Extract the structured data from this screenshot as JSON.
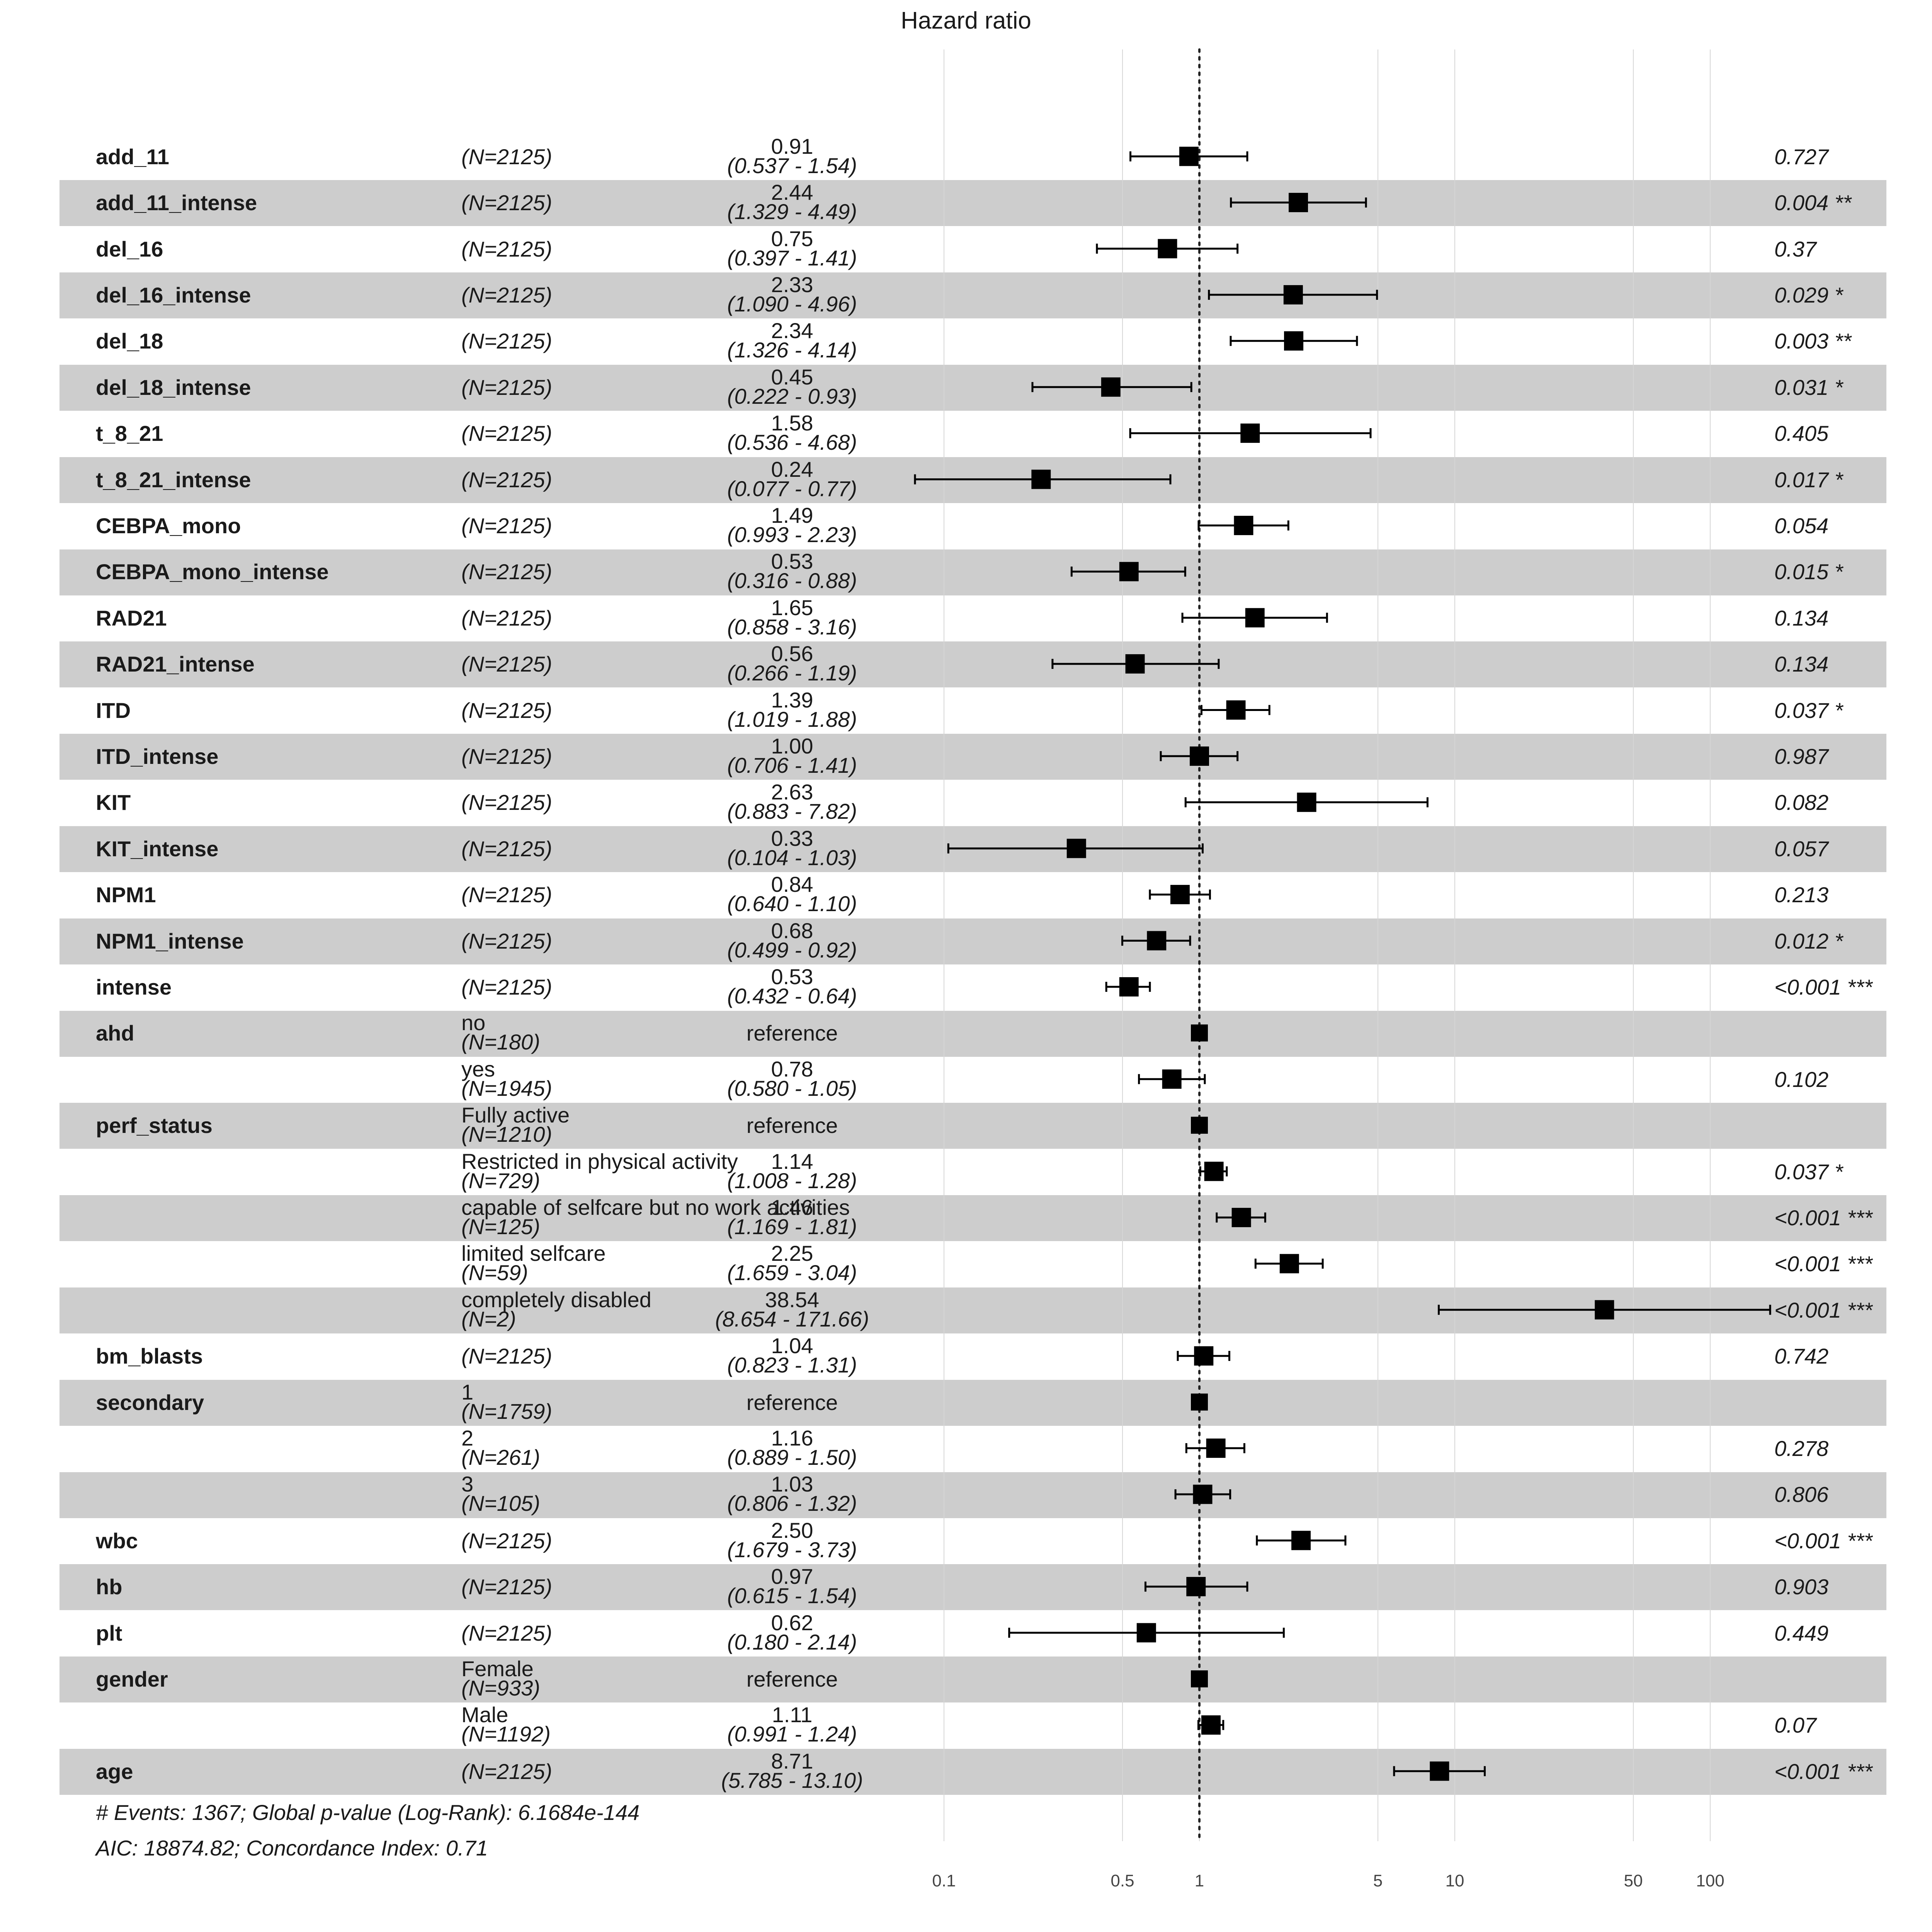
{
  "chart_data": {
    "type": "forest",
    "title": "Hazard ratio",
    "x_scale": "log",
    "x_ticks": [
      "0.1",
      "0.5",
      "1",
      "5",
      "10",
      "50",
      "100"
    ],
    "reference_line": 1,
    "rows": [
      {
        "variable": "add_11",
        "level": "",
        "n": "(N=2125)",
        "hr": 0.91,
        "hr_label": "0.91",
        "ci_label": "(0.537 -   1.54)",
        "lo": 0.537,
        "hi": 1.54,
        "p": "0.727"
      },
      {
        "variable": "add_11_intense",
        "level": "",
        "n": "(N=2125)",
        "hr": 2.44,
        "hr_label": "2.44",
        "ci_label": "(1.329 -   4.49)",
        "lo": 1.329,
        "hi": 4.49,
        "p": "0.004 **"
      },
      {
        "variable": "del_16",
        "level": "",
        "n": "(N=2125)",
        "hr": 0.75,
        "hr_label": "0.75",
        "ci_label": "(0.397 -   1.41)",
        "lo": 0.397,
        "hi": 1.41,
        "p": "0.37"
      },
      {
        "variable": "del_16_intense",
        "level": "",
        "n": "(N=2125)",
        "hr": 2.33,
        "hr_label": "2.33",
        "ci_label": "(1.090 -   4.96)",
        "lo": 1.09,
        "hi": 4.96,
        "p": "0.029 *"
      },
      {
        "variable": "del_18",
        "level": "",
        "n": "(N=2125)",
        "hr": 2.34,
        "hr_label": "2.34",
        "ci_label": "(1.326 -   4.14)",
        "lo": 1.326,
        "hi": 4.14,
        "p": "0.003 **"
      },
      {
        "variable": "del_18_intense",
        "level": "",
        "n": "(N=2125)",
        "hr": 0.45,
        "hr_label": "0.45",
        "ci_label": "(0.222 -   0.93)",
        "lo": 0.222,
        "hi": 0.93,
        "p": "0.031 *"
      },
      {
        "variable": "t_8_21",
        "level": "",
        "n": "(N=2125)",
        "hr": 1.58,
        "hr_label": "1.58",
        "ci_label": "(0.536 -   4.68)",
        "lo": 0.536,
        "hi": 4.68,
        "p": "0.405"
      },
      {
        "variable": "t_8_21_intense",
        "level": "",
        "n": "(N=2125)",
        "hr": 0.24,
        "hr_label": "0.24",
        "ci_label": "(0.077 -   0.77)",
        "lo": 0.077,
        "hi": 0.77,
        "p": "0.017 *"
      },
      {
        "variable": "CEBPA_mono",
        "level": "",
        "n": "(N=2125)",
        "hr": 1.49,
        "hr_label": "1.49",
        "ci_label": "(0.993 -   2.23)",
        "lo": 0.993,
        "hi": 2.23,
        "p": "0.054"
      },
      {
        "variable": "CEBPA_mono_intense",
        "level": "",
        "n": "(N=2125)",
        "hr": 0.53,
        "hr_label": "0.53",
        "ci_label": "(0.316 -   0.88)",
        "lo": 0.316,
        "hi": 0.88,
        "p": "0.015 *"
      },
      {
        "variable": "RAD21",
        "level": "",
        "n": "(N=2125)",
        "hr": 1.65,
        "hr_label": "1.65",
        "ci_label": "(0.858 -   3.16)",
        "lo": 0.858,
        "hi": 3.16,
        "p": "0.134"
      },
      {
        "variable": "RAD21_intense",
        "level": "",
        "n": "(N=2125)",
        "hr": 0.56,
        "hr_label": "0.56",
        "ci_label": "(0.266 -   1.19)",
        "lo": 0.266,
        "hi": 1.19,
        "p": "0.134"
      },
      {
        "variable": "ITD",
        "level": "",
        "n": "(N=2125)",
        "hr": 1.39,
        "hr_label": "1.39",
        "ci_label": "(1.019 -   1.88)",
        "lo": 1.019,
        "hi": 1.88,
        "p": "0.037 *"
      },
      {
        "variable": "ITD_intense",
        "level": "",
        "n": "(N=2125)",
        "hr": 1.0,
        "hr_label": "1.00",
        "ci_label": "(0.706 -   1.41)",
        "lo": 0.706,
        "hi": 1.41,
        "p": "0.987"
      },
      {
        "variable": "KIT",
        "level": "",
        "n": "(N=2125)",
        "hr": 2.63,
        "hr_label": "2.63",
        "ci_label": "(0.883 -   7.82)",
        "lo": 0.883,
        "hi": 7.82,
        "p": "0.082"
      },
      {
        "variable": "KIT_intense",
        "level": "",
        "n": "(N=2125)",
        "hr": 0.33,
        "hr_label": "0.33",
        "ci_label": "(0.104 -   1.03)",
        "lo": 0.104,
        "hi": 1.03,
        "p": "0.057"
      },
      {
        "variable": "NPM1",
        "level": "",
        "n": "(N=2125)",
        "hr": 0.84,
        "hr_label": "0.84",
        "ci_label": "(0.640 -   1.10)",
        "lo": 0.64,
        "hi": 1.1,
        "p": "0.213"
      },
      {
        "variable": "NPM1_intense",
        "level": "",
        "n": "(N=2125)",
        "hr": 0.68,
        "hr_label": "0.68",
        "ci_label": "(0.499 -   0.92)",
        "lo": 0.499,
        "hi": 0.92,
        "p": "0.012 *"
      },
      {
        "variable": "intense",
        "level": "",
        "n": "(N=2125)",
        "hr": 0.53,
        "hr_label": "0.53",
        "ci_label": "(0.432 -   0.64)",
        "lo": 0.432,
        "hi": 0.64,
        "p": "<0.001 ***"
      },
      {
        "variable": "ahd",
        "level": "no",
        "n": "(N=180)",
        "reference": true,
        "ref_label": "reference",
        "hr": 1,
        "p": ""
      },
      {
        "variable": "",
        "level": "yes",
        "n": "(N=1945)",
        "hr": 0.78,
        "hr_label": "0.78",
        "ci_label": "(0.580 -   1.05)",
        "lo": 0.58,
        "hi": 1.05,
        "p": "0.102"
      },
      {
        "variable": "perf_status",
        "level": "Fully active",
        "n": "(N=1210)",
        "reference": true,
        "ref_label": "reference",
        "hr": 1,
        "p": ""
      },
      {
        "variable": "",
        "level": "Restricted in physical activity",
        "n": "(N=729)",
        "hr": 1.14,
        "hr_label": "1.14",
        "ci_label": "(1.008 -   1.28)",
        "lo": 1.008,
        "hi": 1.28,
        "p": "0.037 *"
      },
      {
        "variable": "",
        "level": "capable of selfcare but no work activities",
        "n": "(N=125)",
        "hr": 1.46,
        "hr_label": "1.46",
        "ci_label": "(1.169 -   1.81)",
        "lo": 1.169,
        "hi": 1.81,
        "p": "<0.001 ***"
      },
      {
        "variable": "",
        "level": "limited selfcare",
        "n": "(N=59)",
        "hr": 2.25,
        "hr_label": "2.25",
        "ci_label": "(1.659 -   3.04)",
        "lo": 1.659,
        "hi": 3.04,
        "p": "<0.001 ***"
      },
      {
        "variable": "",
        "level": "completely disabled",
        "n": "(N=2)",
        "hr": 38.54,
        "hr_label": "38.54",
        "ci_label": "(8.654 - 171.66)",
        "lo": 8.654,
        "hi": 171.66,
        "p": "<0.001 ***"
      },
      {
        "variable": "bm_blasts",
        "level": "",
        "n": "(N=2125)",
        "hr": 1.04,
        "hr_label": "1.04",
        "ci_label": "(0.823 -   1.31)",
        "lo": 0.823,
        "hi": 1.31,
        "p": "0.742"
      },
      {
        "variable": "secondary",
        "level": "1",
        "n": "(N=1759)",
        "reference": true,
        "ref_label": "reference",
        "hr": 1,
        "p": ""
      },
      {
        "variable": "",
        "level": "2",
        "n": "(N=261)",
        "hr": 1.16,
        "hr_label": "1.16",
        "ci_label": "(0.889 -   1.50)",
        "lo": 0.889,
        "hi": 1.5,
        "p": "0.278"
      },
      {
        "variable": "",
        "level": "3",
        "n": "(N=105)",
        "hr": 1.03,
        "hr_label": "1.03",
        "ci_label": "(0.806 -   1.32)",
        "lo": 0.806,
        "hi": 1.32,
        "p": "0.806"
      },
      {
        "variable": "wbc",
        "level": "",
        "n": "(N=2125)",
        "hr": 2.5,
        "hr_label": "2.50",
        "ci_label": "(1.679 -   3.73)",
        "lo": 1.679,
        "hi": 3.73,
        "p": "<0.001 ***"
      },
      {
        "variable": "hb",
        "level": "",
        "n": "(N=2125)",
        "hr": 0.97,
        "hr_label": "0.97",
        "ci_label": "(0.615 -   1.54)",
        "lo": 0.615,
        "hi": 1.54,
        "p": "0.903"
      },
      {
        "variable": "plt",
        "level": "",
        "n": "(N=2125)",
        "hr": 0.62,
        "hr_label": "0.62",
        "ci_label": "(0.180 -   2.14)",
        "lo": 0.18,
        "hi": 2.14,
        "p": "0.449"
      },
      {
        "variable": "gender",
        "level": "Female",
        "n": "(N=933)",
        "reference": true,
        "ref_label": "reference",
        "hr": 1,
        "p": ""
      },
      {
        "variable": "",
        "level": "Male",
        "n": "(N=1192)",
        "hr": 1.11,
        "hr_label": "1.11",
        "ci_label": "(0.991 -   1.24)",
        "lo": 0.991,
        "hi": 1.24,
        "p": "0.07"
      },
      {
        "variable": "age",
        "level": "",
        "n": "(N=2125)",
        "hr": 8.71,
        "hr_label": "8.71",
        "ci_label": "(5.785 -  13.10)",
        "lo": 5.785,
        "hi": 13.1,
        "p": "<0.001 ***"
      }
    ],
    "footer": [
      "# Events: 1367; Global p-value (Log-Rank): 6.1684e-144",
      "AIC: 18874.82; Concordance Index: 0.71"
    ],
    "colors": {
      "stripe": "#cdcdcd",
      "marker": "#000000",
      "grid": "#d9d9d9",
      "text": "#1a1a1a"
    }
  }
}
